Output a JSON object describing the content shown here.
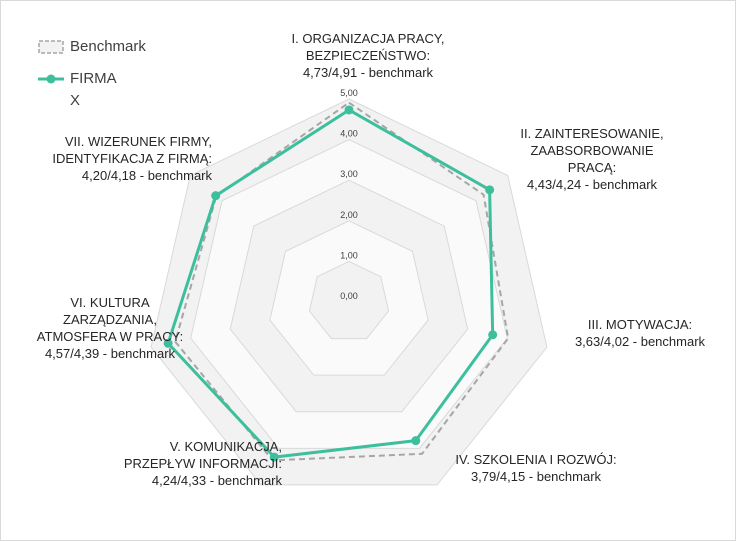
{
  "chart_data": {
    "type": "radar",
    "scale_min": 0,
    "scale_max": 5,
    "ticks": [
      "0,00",
      "1,00",
      "2,00",
      "3,00",
      "4,00",
      "5,00"
    ],
    "tick_values": [
      0,
      1,
      2,
      3,
      4,
      5
    ],
    "axes": [
      {
        "lines": [
          "I. ORGANIZACJA PRACY,",
          "BEZPIECZEŃSTWO:",
          "4,73/4,91 - benchmark"
        ]
      },
      {
        "lines": [
          "II. ZAINTERESOWANIE,",
          "ZAABSORBOWANIE",
          "PRACĄ:",
          "4,43/4,24 - benchmark"
        ]
      },
      {
        "lines": [
          "III. MOTYWACJA:",
          "3,63/4,02 - benchmark"
        ]
      },
      {
        "lines": [
          "IV. SZKOLENIA I ROZWÓJ:",
          "3,79/4,15 - benchmark"
        ]
      },
      {
        "lines": [
          "V. KOMUNIKACJA,",
          "PRZEPŁYW INFORMACJI:",
          "4,24/4,33 - benchmark"
        ]
      },
      {
        "lines": [
          "VI. KULTURA",
          "ZARZĄDZANIA,",
          "ATMOSFERA W PRACY:",
          "4,57/4,39 - benchmark"
        ]
      },
      {
        "lines": [
          "VII. WIZERUNEK FIRMY,",
          "IDENTYFIKACJA Z FIRMĄ:",
          "4,20/4,18 - benchmark"
        ]
      }
    ],
    "series": [
      {
        "name": "Benchmark",
        "values": [
          4.91,
          4.24,
          4.02,
          4.15,
          4.33,
          4.39,
          4.18
        ],
        "color": "#a6a6a6",
        "style": "dashed"
      },
      {
        "name": "FIRMA X",
        "values": [
          4.73,
          4.43,
          3.63,
          3.79,
          4.24,
          4.57,
          4.2
        ],
        "color": "#3dbf9d",
        "style": "solid-markers"
      }
    ],
    "legend_position": "top-left",
    "band_colors": [
      "#f2f2f2",
      "#fafafa"
    ],
    "grid_color": "#d9d9d9"
  }
}
